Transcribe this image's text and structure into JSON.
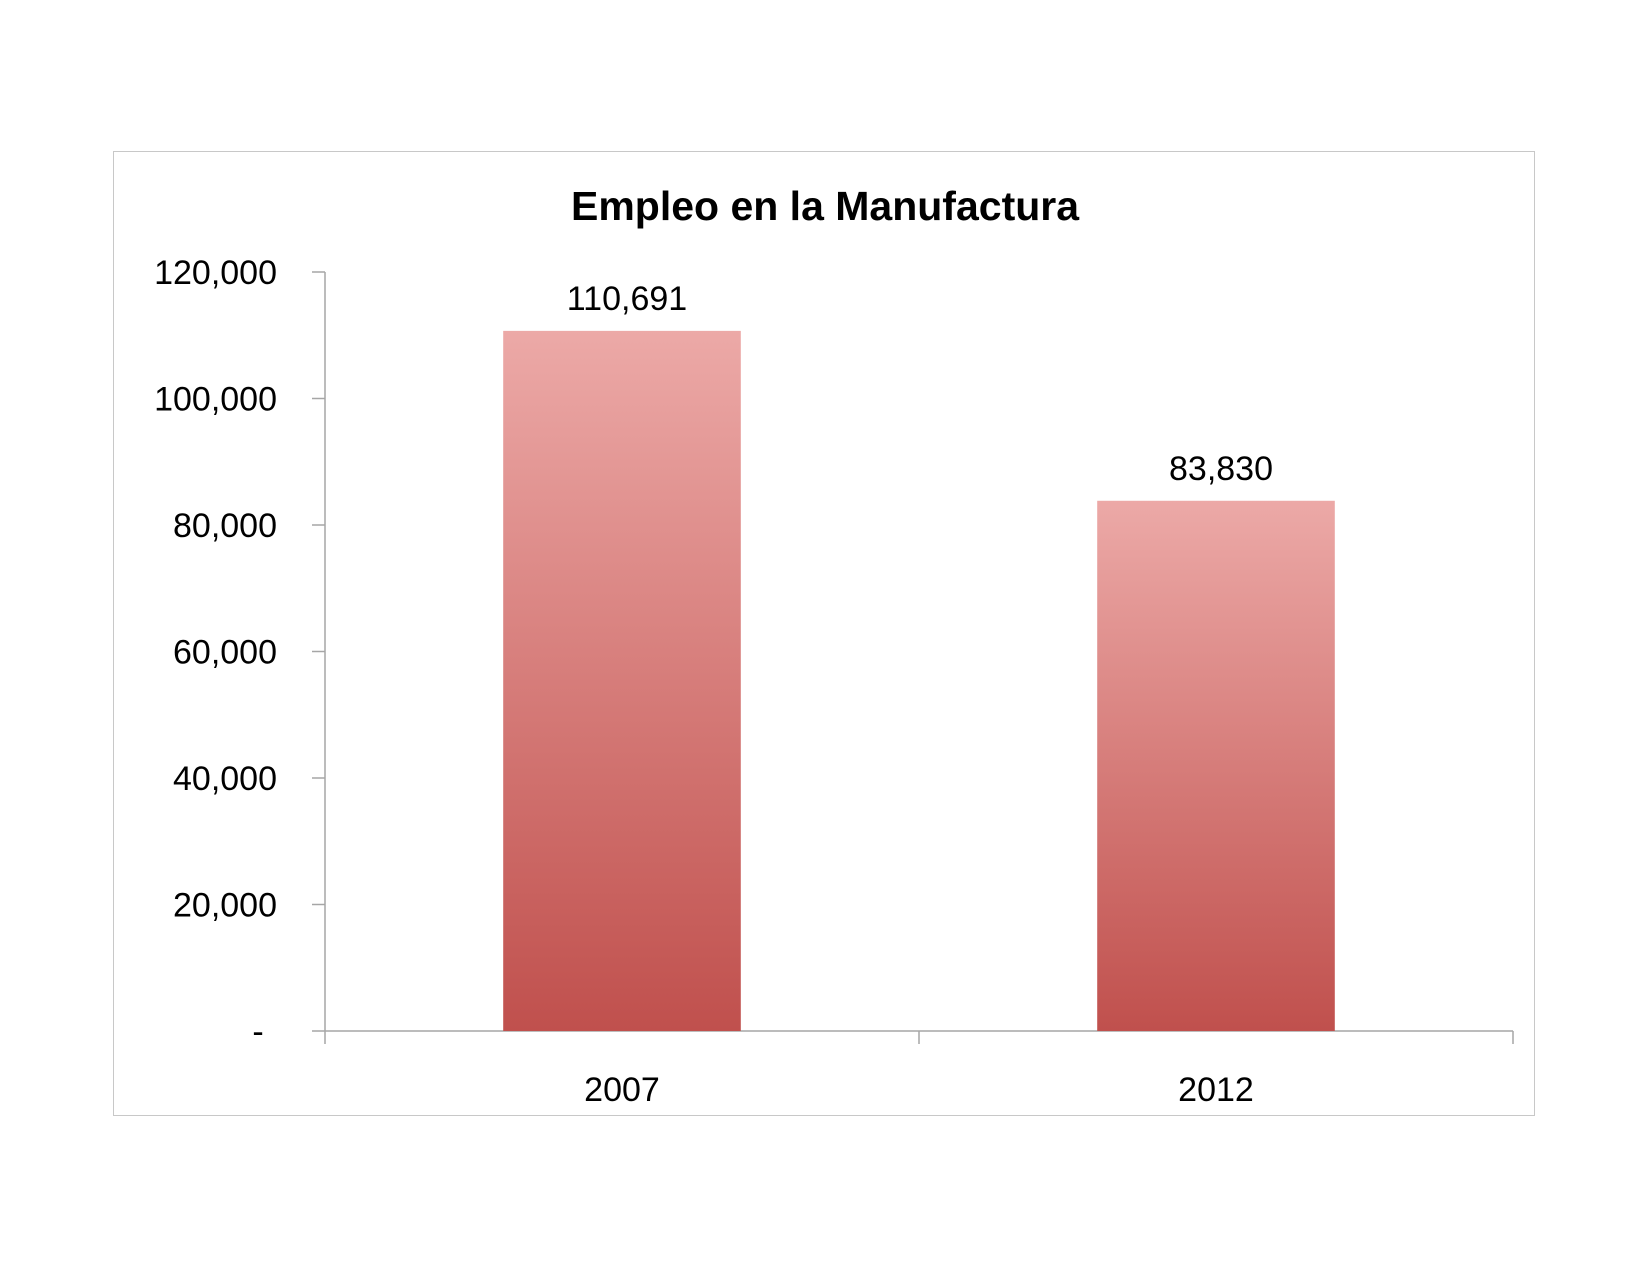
{
  "chart_data": {
    "type": "bar",
    "title": "Empleo en la Manufactura",
    "xlabel": "",
    "ylabel": "",
    "categories": [
      "2007",
      "2012"
    ],
    "values": [
      110691,
      83830
    ],
    "data_labels": [
      "110,691",
      "83,830"
    ],
    "ylim": [
      0,
      120000
    ],
    "yticks": [
      0,
      20000,
      40000,
      60000,
      80000,
      100000,
      120000
    ],
    "ytick_labels": [
      "-",
      "20,000",
      "40,000",
      "60,000",
      "80,000",
      "100,000",
      "120,000"
    ],
    "grid": false,
    "legend": "none",
    "colors": {
      "bar_top": "#eca9a7",
      "bar_bottom": "#c0504d",
      "axis": "#a6a6a6",
      "frame": "#c8c8c8",
      "text": "#000000"
    }
  }
}
